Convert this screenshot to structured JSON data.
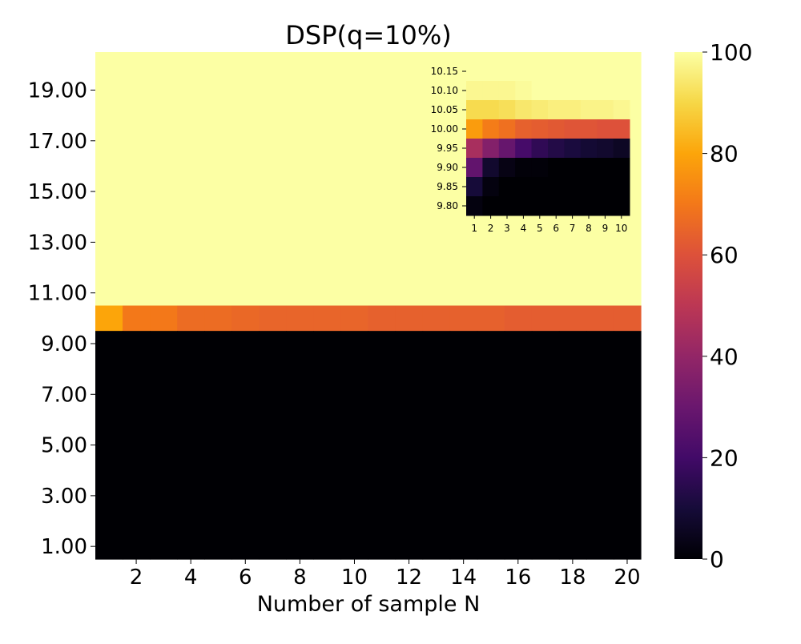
{
  "chart_data": [
    {
      "type": "heatmap",
      "title": "DSP(q=10%)",
      "xlabel": "Number of sample N",
      "ylabel": "",
      "x": [
        1,
        2,
        3,
        4,
        5,
        6,
        7,
        8,
        9,
        10,
        11,
        12,
        13,
        14,
        15,
        16,
        17,
        18,
        19,
        20
      ],
      "x_tick_labels": [
        "2",
        "4",
        "6",
        "8",
        "10",
        "12",
        "14",
        "16",
        "18",
        "20"
      ],
      "y_tick_labels": [
        "19.00",
        "17.00",
        "15.00",
        "13.00",
        "11.00",
        "9.00",
        "7.00",
        "5.00",
        "3.00",
        "1.00"
      ],
      "colorbar": {
        "range": [
          0,
          100
        ],
        "ticks": [
          "0",
          "20",
          "40",
          "60",
          "80",
          "100"
        ],
        "colormap": "inferno"
      },
      "rows": [
        {
          "y_range": [
            10.5,
            20.5
          ],
          "values": [
            100,
            100,
            100,
            100,
            100,
            100,
            100,
            100,
            100,
            100,
            100,
            100,
            100,
            100,
            100,
            100,
            100,
            100,
            100,
            100
          ]
        },
        {
          "y_range": [
            9.5,
            10.5
          ],
          "values": [
            80,
            70,
            70,
            67,
            67,
            66,
            65,
            65,
            65,
            65,
            64,
            64,
            64,
            64,
            64,
            63,
            63,
            63,
            63,
            63
          ]
        },
        {
          "y_range": [
            0.5,
            9.5
          ],
          "values": [
            0,
            0,
            0,
            0,
            0,
            0,
            0,
            0,
            0,
            0,
            0,
            0,
            0,
            0,
            0,
            0,
            0,
            0,
            0,
            0
          ]
        }
      ]
    },
    {
      "type": "heatmap",
      "title": "",
      "inset": true,
      "x": [
        1,
        2,
        3,
        4,
        5,
        6,
        7,
        8,
        9,
        10
      ],
      "x_tick_labels": [
        "1",
        "2",
        "3",
        "4",
        "5",
        "6",
        "7",
        "8",
        "9",
        "10"
      ],
      "y_tick_labels": [
        "10.15",
        "10.10",
        "10.05",
        "10.00",
        "9.95",
        "9.90",
        "9.85",
        "9.80"
      ],
      "rows": [
        {
          "y": "10.15",
          "values": [
            100,
            100,
            100,
            100,
            100,
            100,
            100,
            100,
            100,
            100
          ]
        },
        {
          "y": "10.10",
          "values": [
            98,
            98,
            98,
            99,
            100,
            100,
            100,
            100,
            100,
            100
          ]
        },
        {
          "y": "10.05",
          "values": [
            91,
            91,
            92,
            94,
            95,
            96,
            96,
            97,
            97,
            98
          ]
        },
        {
          "y": "10.00",
          "values": [
            78,
            71,
            68,
            64,
            63,
            62,
            61,
            61,
            60,
            60
          ]
        },
        {
          "y": "9.95",
          "values": [
            45,
            36,
            29,
            21,
            16,
            13,
            11,
            9,
            8,
            6
          ]
        },
        {
          "y": "9.90",
          "values": [
            28,
            8,
            3,
            1,
            1,
            0,
            0,
            0,
            0,
            0
          ]
        },
        {
          "y": "9.85",
          "values": [
            10,
            2,
            0,
            0,
            0,
            0,
            0,
            0,
            0,
            0
          ]
        },
        {
          "y": "9.80",
          "values": [
            2,
            0,
            0,
            0,
            0,
            0,
            0,
            0,
            0,
            0
          ]
        }
      ]
    }
  ]
}
